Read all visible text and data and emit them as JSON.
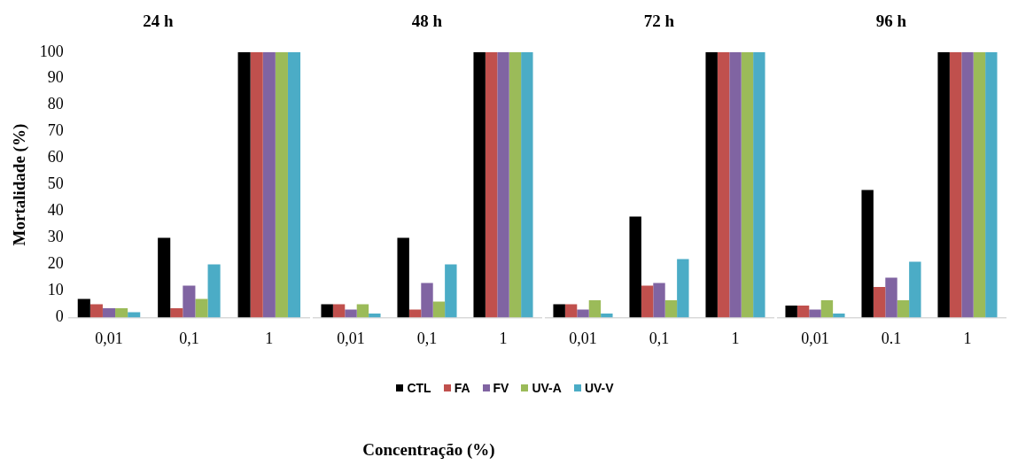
{
  "chart_data": [
    {
      "type": "bar",
      "title": "24 h",
      "ylabel": "Mortalidade (%)",
      "legend": "bottom",
      "grid": false,
      "categories": [
        "0,01",
        "0,1",
        "1"
      ],
      "ylim": [
        0,
        100
      ],
      "yticks": [
        0,
        10,
        20,
        30,
        40,
        50,
        60,
        70,
        80,
        90,
        100
      ],
      "series": [
        {
          "name": "CTL",
          "color": "#000000",
          "values": [
            7,
            30,
            100
          ]
        },
        {
          "name": "FA",
          "color": "#c0504d",
          "values": [
            5,
            3.5,
            100
          ]
        },
        {
          "name": "FV",
          "color": "#8064a2",
          "values": [
            3.5,
            12,
            100
          ]
        },
        {
          "name": "UV-A",
          "color": "#9bbb59",
          "values": [
            3.5,
            7,
            100
          ]
        },
        {
          "name": "UV-V",
          "color": "#4bacc6",
          "values": [
            2,
            20,
            100
          ]
        }
      ]
    },
    {
      "type": "bar",
      "title": "48 h",
      "xlabel": "Concentração (%)",
      "grid": false,
      "tick_labels": "x",
      "categories": [
        "0,01",
        "0,1",
        "1"
      ],
      "ylim": [
        0,
        100
      ],
      "yticks": [
        0,
        10,
        20,
        30,
        40,
        50,
        60,
        70,
        80,
        90,
        100
      ],
      "series": [
        {
          "color": "#000000",
          "values": [
            5,
            30,
            100
          ]
        },
        {
          "color": "#c0504d",
          "values": [
            5,
            3,
            100
          ]
        },
        {
          "color": "#8064a2",
          "values": [
            3,
            13,
            100
          ]
        },
        {
          "color": "#9bbb59",
          "values": [
            5,
            6,
            100
          ]
        },
        {
          "color": "#4bacc6",
          "values": [
            1.5,
            20,
            100
          ]
        }
      ]
    },
    {
      "type": "bar",
      "title": "72 h",
      "grid": false,
      "tick_labels": "x",
      "categories": [
        "0,01",
        "0,1",
        "1"
      ],
      "ylim": [
        0,
        100
      ],
      "yticks": [
        0,
        10,
        20,
        30,
        40,
        50,
        60,
        70,
        80,
        90,
        100
      ],
      "series": [
        {
          "color": "#000000",
          "values": [
            5,
            38,
            100
          ]
        },
        {
          "color": "#c0504d",
          "values": [
            5,
            12,
            100
          ]
        },
        {
          "color": "#8064a2",
          "values": [
            3,
            13,
            100
          ]
        },
        {
          "color": "#9bbb59",
          "values": [
            6.5,
            6.5,
            100
          ]
        },
        {
          "color": "#4bacc6",
          "values": [
            1.5,
            22,
            100
          ]
        }
      ]
    },
    {
      "type": "bar",
      "title": "96 h",
      "grid": false,
      "tick_labels": "x",
      "categories": [
        "0,01",
        "0.1",
        "1"
      ],
      "ylim": [
        0,
        100
      ],
      "yticks": [
        0,
        10,
        20,
        30,
        40,
        50,
        60,
        70,
        80,
        90,
        100
      ],
      "series": [
        {
          "color": "#000000",
          "values": [
            4.5,
            48,
            100
          ]
        },
        {
          "color": "#c0504d",
          "values": [
            4.5,
            11.5,
            100
          ]
        },
        {
          "color": "#8064a2",
          "values": [
            3,
            15,
            100
          ]
        },
        {
          "color": "#9bbb59",
          "values": [
            6.5,
            6.5,
            100
          ]
        },
        {
          "color": "#4bacc6",
          "values": [
            1.5,
            21,
            100
          ]
        }
      ]
    }
  ]
}
